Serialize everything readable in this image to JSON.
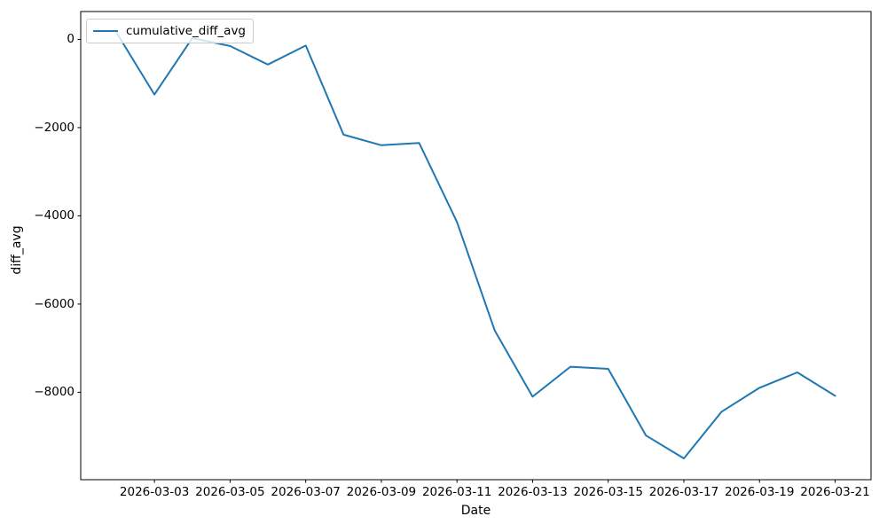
{
  "figure": {
    "background_color": "#ffffff",
    "spine_color": "#000000",
    "tick_color": "#000000"
  },
  "chart_data": {
    "type": "line",
    "title": "",
    "xlabel": "Date",
    "ylabel": "diff_avg",
    "grid": false,
    "legend": {
      "position": "upper left",
      "entries": [
        "cumulative_diff_avg"
      ]
    },
    "line_color": "#1f77b4",
    "dates": [
      "2026-03-02",
      "2026-03-03",
      "2026-03-04",
      "2026-03-05",
      "2026-03-06",
      "2026-03-07",
      "2026-03-08",
      "2026-03-09",
      "2026-03-10",
      "2026-03-11",
      "2026-03-12",
      "2026-03-13",
      "2026-03-14",
      "2026-03-15",
      "2026-03-16",
      "2026-03-17",
      "2026-03-18",
      "2026-03-19",
      "2026-03-20",
      "2026-03-21"
    ],
    "values": [
      150,
      -1250,
      30,
      -150,
      -570,
      -140,
      -2160,
      -2400,
      -2350,
      -4140,
      -6600,
      -8100,
      -7420,
      -7470,
      -8980,
      -9500,
      -8440,
      -7900,
      -7550,
      -8080
    ],
    "x_tick_day_indices": [
      1,
      3,
      5,
      7,
      9,
      11,
      13,
      15,
      17,
      19
    ],
    "x_tick_labels": [
      "2026-03-03",
      "2026-03-05",
      "2026-03-07",
      "2026-03-09",
      "2026-03-11",
      "2026-03-13",
      "2026-03-15",
      "2026-03-17",
      "2026-03-19",
      "2026-03-21"
    ],
    "y_tick_values": [
      0,
      -2000,
      -4000,
      -6000,
      -8000
    ],
    "y_tick_labels": [
      "0",
      "−2000",
      "−4000",
      "−6000",
      "−8000"
    ],
    "xlim_day_index": [
      -0.95,
      19.95
    ],
    "ylim": [
      -9982,
      632
    ]
  }
}
